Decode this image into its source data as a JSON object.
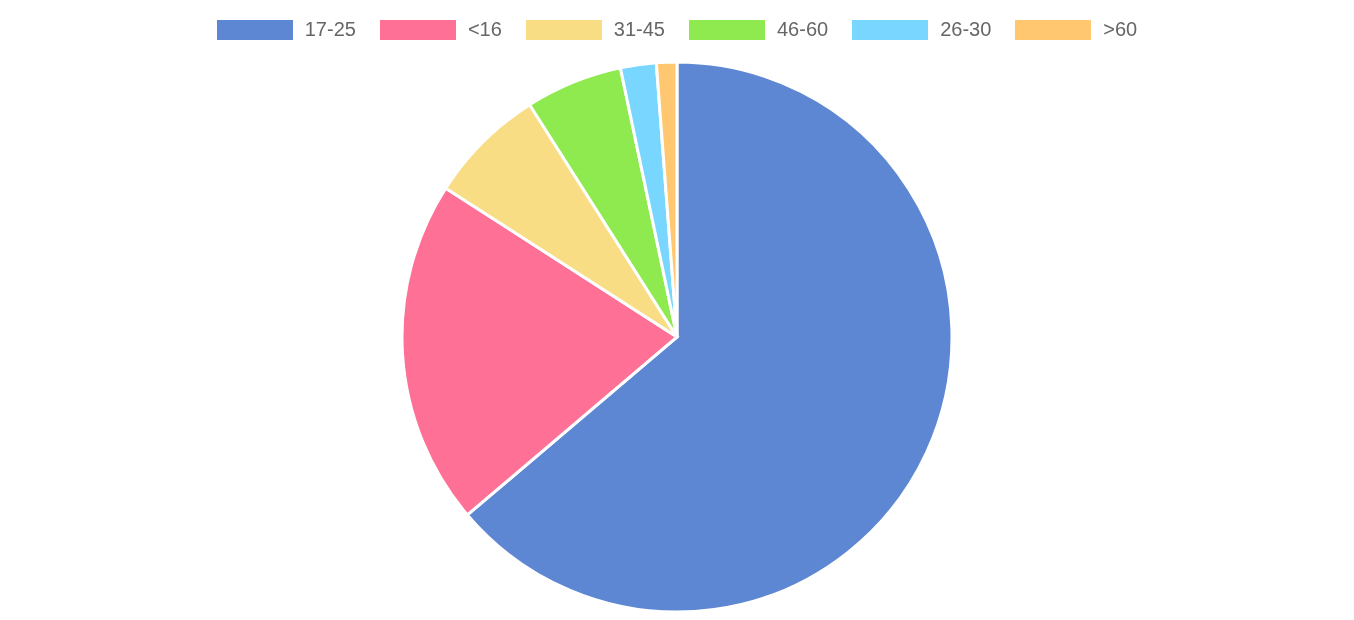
{
  "chart_data": {
    "type": "pie",
    "categories": [
      "17-25",
      "<16",
      "31-45",
      "46-60",
      "26-30",
      ">60"
    ],
    "values": [
      63.8,
      20.3,
      6.9,
      5.7,
      2.1,
      1.2
    ],
    "colors": [
      "#5e87d3",
      "#ff7096",
      "#f9dd85",
      "#8eea4e",
      "#78d6ff",
      "#ffc870"
    ],
    "legend": "top"
  }
}
